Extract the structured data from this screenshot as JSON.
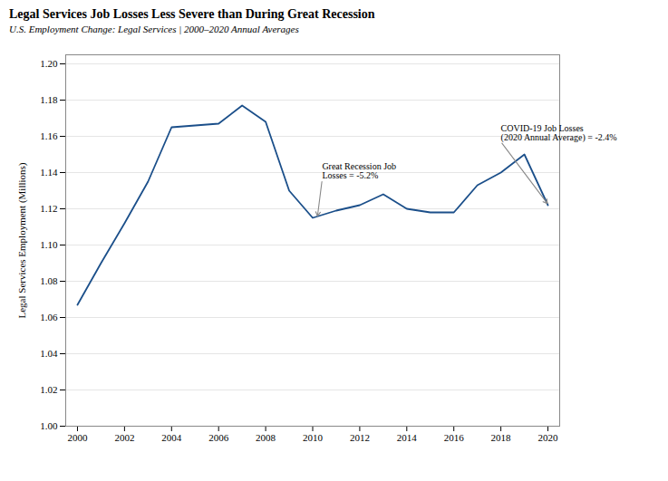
{
  "chart_data": {
    "type": "line",
    "title": "Legal Services Job Losses Less Severe than During Great Recession",
    "subtitle": "U.S. Employment Change: Legal Services  |  2000–2020 Annual Averages",
    "ylabel": "Legal Services Employment (Millions)",
    "x": [
      2000,
      2001,
      2002,
      2003,
      2004,
      2005,
      2006,
      2007,
      2008,
      2009,
      2010,
      2011,
      2012,
      2013,
      2014,
      2015,
      2016,
      2017,
      2018,
      2019,
      2020
    ],
    "values": [
      1.067,
      1.09,
      1.112,
      1.135,
      1.165,
      1.166,
      1.167,
      1.177,
      1.168,
      1.13,
      1.115,
      1.119,
      1.122,
      1.128,
      1.12,
      1.118,
      1.118,
      1.133,
      1.14,
      1.15,
      1.122
    ],
    "color": "#1b4f8a",
    "xlim": [
      1999.5,
      2020.5
    ],
    "ylim": [
      1.0,
      1.205
    ],
    "xticks": [
      2000,
      2002,
      2004,
      2006,
      2008,
      2010,
      2012,
      2014,
      2016,
      2018,
      2020
    ],
    "yticks": [
      {
        "value": 1.0,
        "label": "1.00"
      },
      1.02,
      1.04,
      1.06,
      1.08,
      {
        "value": 1.1,
        "label": "1.10"
      },
      1.12,
      1.14,
      1.16,
      1.18,
      {
        "value": 1.2,
        "label": "1.20"
      }
    ],
    "grid": "y",
    "annotations": [
      {
        "text": "Great Recession Job\nLosses = -5.2%",
        "xy": [
          2010.2,
          1.1155
        ],
        "xytext": [
          2010.4,
          1.136
        ]
      },
      {
        "text": "COVID-19 Job Losses\n(2020 Annual Average) = -2.4%",
        "xy": [
          2020.0,
          1.1225
        ],
        "xytext": [
          2018.0,
          1.157
        ]
      }
    ]
  }
}
